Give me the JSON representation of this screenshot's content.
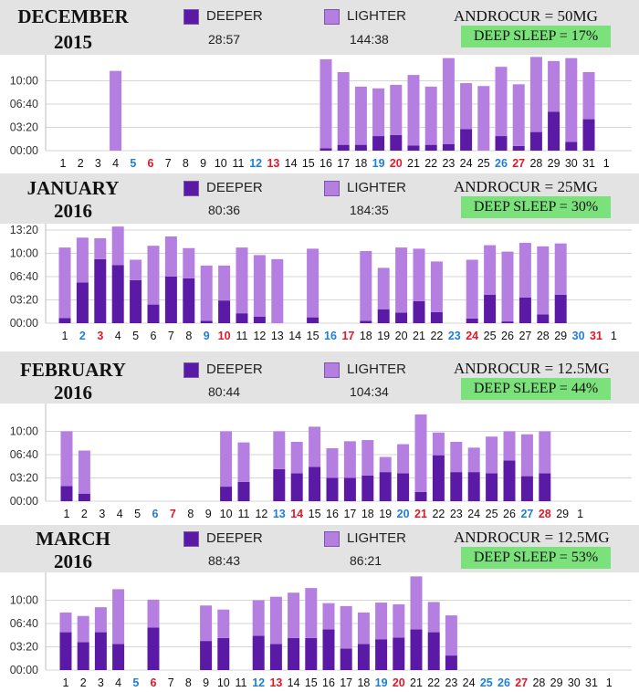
{
  "legend": {
    "deeper_label": "DEEPER",
    "lighter_label": "LIGHTER"
  },
  "colors": {
    "deeper": "#5b1aa6",
    "lighter": "#b47fe0",
    "grid": "#d6d6d6",
    "header_bg": "#e3e3e3",
    "deep_sleep_bg": "#7be27b",
    "day_blue": "#1e7fd6",
    "day_red": "#e0182a",
    "day_black": "#111111"
  },
  "chart_data": [
    {
      "type": "bar",
      "stacked": true,
      "month": "DECEMBER",
      "year": "2015",
      "drug": "ANDROCUR = 50MG",
      "deep_sleep": "DEEP SLEEP = 17%",
      "totals": {
        "deeper": "28:57",
        "lighter": "144:38"
      },
      "yticks": [
        "00:00",
        "03:20",
        "06:40",
        "10:00"
      ],
      "ylim_minutes": [
        0,
        800
      ],
      "categories": [
        "1",
        "2",
        "3",
        "4",
        "5",
        "6",
        "7",
        "8",
        "9",
        "10",
        "11",
        "12",
        "13",
        "14",
        "15",
        "16",
        "17",
        "18",
        "19",
        "20",
        "21",
        "22",
        "23",
        "24",
        "25",
        "26",
        "27",
        "28",
        "29",
        "30",
        "31",
        "1"
      ],
      "day_colors": [
        "black",
        "black",
        "black",
        "black",
        "blue",
        "red",
        "black",
        "black",
        "black",
        "black",
        "black",
        "blue",
        "red",
        "black",
        "black",
        "black",
        "black",
        "black",
        "blue",
        "red",
        "black",
        "black",
        "black",
        "black",
        "black",
        "blue",
        "red",
        "black",
        "black",
        "black",
        "black",
        "black"
      ],
      "series": [
        {
          "name": "DEEPER",
          "values_minutes": [
            0,
            0,
            0,
            0,
            0,
            0,
            0,
            0,
            0,
            0,
            0,
            0,
            0,
            0,
            0,
            20,
            50,
            50,
            125,
            135,
            45,
            50,
            55,
            185,
            0,
            125,
            40,
            160,
            335,
            75,
            270,
            0
          ]
        },
        {
          "name": "LIGHTER",
          "values_minutes": [
            0,
            0,
            0,
            685,
            0,
            0,
            0,
            0,
            0,
            0,
            0,
            0,
            0,
            0,
            0,
            765,
            625,
            500,
            410,
            430,
            605,
            500,
            740,
            395,
            555,
            595,
            530,
            645,
            435,
            720,
            405,
            0
          ]
        }
      ]
    },
    {
      "type": "bar",
      "stacked": true,
      "month": "JANUARY",
      "year": "2016",
      "drug": "ANDROCUR = 25MG",
      "deep_sleep": "DEEP SLEEP = 30%",
      "totals": {
        "deeper": "80:36",
        "lighter": "184:35"
      },
      "yticks": [
        "00:00",
        "03:20",
        "06:40",
        "10:00",
        "13:20"
      ],
      "ylim_minutes": [
        0,
        800
      ],
      "categories": [
        "1",
        "2",
        "3",
        "4",
        "5",
        "6",
        "7",
        "8",
        "9",
        "10",
        "11",
        "12",
        "13",
        "14",
        "15",
        "16",
        "17",
        "18",
        "19",
        "20",
        "21",
        "22",
        "23",
        "24",
        "25",
        "26",
        "27",
        "28",
        "29",
        "30",
        "31",
        "1"
      ],
      "day_colors": [
        "black",
        "blue",
        "red",
        "black",
        "black",
        "black",
        "black",
        "black",
        "blue",
        "red",
        "black",
        "black",
        "black",
        "black",
        "black",
        "blue",
        "red",
        "black",
        "black",
        "black",
        "black",
        "black",
        "blue",
        "red",
        "black",
        "black",
        "black",
        "black",
        "black",
        "blue",
        "red",
        "black"
      ],
      "series": [
        {
          "name": "DEEPER",
          "values_minutes": [
            45,
            350,
            550,
            500,
            370,
            160,
            400,
            385,
            20,
            195,
            85,
            55,
            0,
            0,
            50,
            0,
            0,
            20,
            120,
            90,
            190,
            95,
            0,
            40,
            245,
            15,
            220,
            75,
            245,
            0,
            0,
            0
          ]
        },
        {
          "name": "LIGHTER",
          "values_minutes": [
            605,
            385,
            180,
            330,
            175,
            505,
            345,
            260,
            475,
            300,
            565,
            530,
            550,
            0,
            590,
            0,
            0,
            600,
            355,
            560,
            450,
            435,
            0,
            505,
            425,
            600,
            470,
            585,
            440,
            0,
            0,
            0
          ]
        }
      ]
    },
    {
      "type": "bar",
      "stacked": true,
      "month": "FEBRUARY",
      "year": "2016",
      "drug": "ANDROCUR = 12.5MG",
      "deep_sleep": "DEEP SLEEP = 44%",
      "totals": {
        "deeper": "80:44",
        "lighter": "104:34"
      },
      "yticks": [
        "00:00",
        "03:20",
        "06:40",
        "10:00"
      ],
      "ylim_minutes": [
        0,
        800
      ],
      "categories": [
        "1",
        "2",
        "3",
        "4",
        "5",
        "6",
        "7",
        "8",
        "9",
        "10",
        "11",
        "12",
        "13",
        "14",
        "15",
        "16",
        "17",
        "18",
        "19",
        "20",
        "21",
        "22",
        "23",
        "24",
        "25",
        "26",
        "27",
        "28",
        "29",
        "1"
      ],
      "day_colors": [
        "black",
        "black",
        "black",
        "black",
        "black",
        "blue",
        "red",
        "black",
        "black",
        "black",
        "black",
        "black",
        "blue",
        "red",
        "black",
        "black",
        "black",
        "black",
        "black",
        "blue",
        "red",
        "black",
        "black",
        "black",
        "black",
        "black",
        "blue",
        "red",
        "black",
        "black"
      ],
      "series": [
        {
          "name": "DEEPER",
          "values_minutes": [
            130,
            65,
            0,
            0,
            0,
            0,
            0,
            0,
            0,
            125,
            165,
            0,
            275,
            240,
            295,
            200,
            200,
            220,
            250,
            240,
            80,
            395,
            250,
            250,
            240,
            350,
            215,
            240,
            0,
            0
          ]
        },
        {
          "name": "LIGHTER",
          "values_minutes": [
            470,
            370,
            0,
            0,
            0,
            0,
            0,
            0,
            0,
            475,
            340,
            0,
            325,
            270,
            345,
            255,
            315,
            305,
            130,
            250,
            665,
            195,
            260,
            210,
            315,
            250,
            360,
            360,
            0,
            0
          ]
        }
      ]
    },
    {
      "type": "bar",
      "stacked": true,
      "month": "MARCH",
      "year": "2016",
      "drug": "ANDROCUR = 12.5MG",
      "deep_sleep": "DEEP SLEEP = 53%",
      "totals": {
        "deeper": "88:43",
        "lighter": "86:21"
      },
      "yticks": [
        "00:00",
        "03:20",
        "06:40",
        "10:00"
      ],
      "ylim_minutes": [
        0,
        800
      ],
      "categories": [
        "1",
        "2",
        "3",
        "4",
        "5",
        "6",
        "7",
        "8",
        "9",
        "10",
        "11",
        "12",
        "13",
        "14",
        "15",
        "16",
        "17",
        "18",
        "19",
        "20",
        "21",
        "22",
        "23",
        "24",
        "25",
        "26",
        "27",
        "28",
        "29",
        "30",
        "31",
        "1"
      ],
      "day_colors": [
        "black",
        "black",
        "black",
        "black",
        "blue",
        "red",
        "black",
        "black",
        "black",
        "black",
        "black",
        "blue",
        "red",
        "black",
        "black",
        "black",
        "black",
        "black",
        "blue",
        "red",
        "black",
        "black",
        "black",
        "black",
        "blue",
        "blue",
        "red",
        "black",
        "black",
        "black",
        "black",
        "black"
      ],
      "series": [
        {
          "name": "DEEPER",
          "values_minutes": [
            325,
            240,
            325,
            225,
            0,
            365,
            0,
            0,
            250,
            275,
            0,
            295,
            225,
            275,
            275,
            350,
            185,
            225,
            265,
            280,
            350,
            325,
            125,
            0,
            0,
            0,
            0,
            0,
            0,
            0,
            0,
            0
          ]
        },
        {
          "name": "LIGHTER",
          "values_minutes": [
            170,
            225,
            215,
            470,
            0,
            240,
            0,
            0,
            305,
            245,
            0,
            305,
            405,
            390,
            430,
            225,
            365,
            270,
            315,
            285,
            455,
            260,
            345,
            0,
            0,
            0,
            0,
            0,
            0,
            0,
            0,
            0
          ]
        }
      ]
    }
  ]
}
